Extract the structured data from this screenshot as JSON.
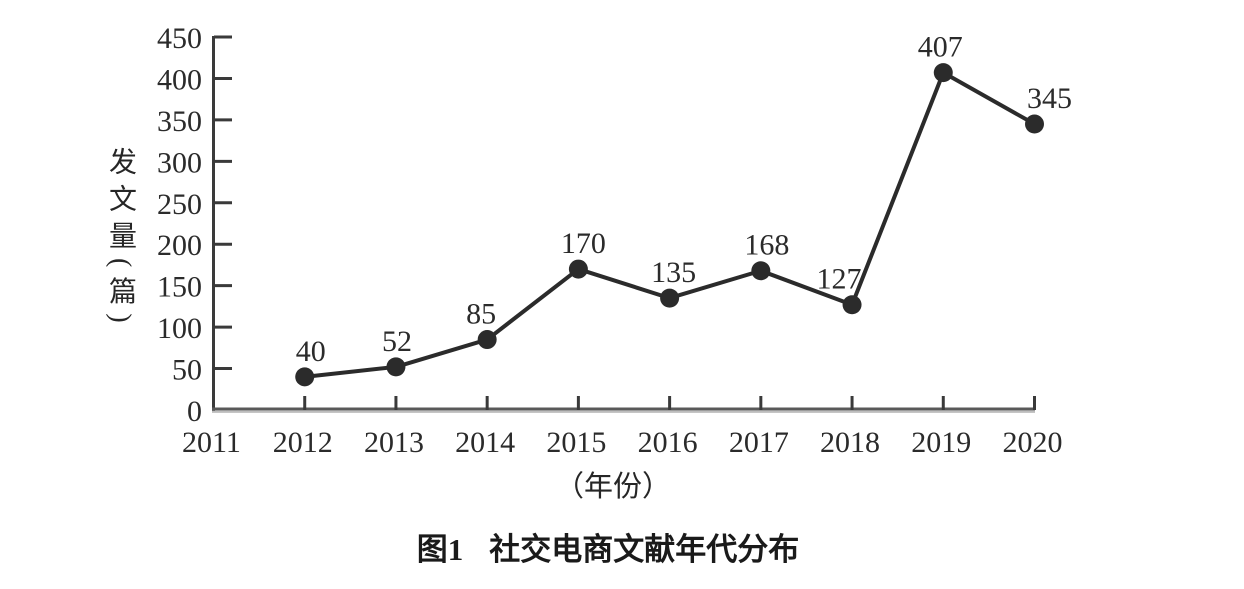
{
  "chart_data": {
    "type": "line",
    "caption": {
      "prefix": "图1",
      "title": "社交电商文献年代分布"
    },
    "ylabel": "发文量(篇)",
    "xlabel": "（年份）",
    "x_ticks": [
      "2011",
      "2012",
      "2013",
      "2014",
      "2015",
      "2016",
      "2017",
      "2018",
      "2019",
      "2020"
    ],
    "y_ticks": [
      0,
      50,
      100,
      150,
      200,
      250,
      300,
      350,
      400,
      450
    ],
    "ylim": [
      0,
      450
    ],
    "grid": false,
    "legend": null,
    "line_color": "#2b2b2b",
    "axis_color": "#3a3a3a",
    "marker": "filled-circle",
    "series": [
      {
        "x": [
          "2012",
          "2013",
          "2014",
          "2015",
          "2016",
          "2017",
          "2018",
          "2019",
          "2020"
        ],
        "values": [
          40,
          52,
          85,
          170,
          135,
          168,
          127,
          407,
          345
        ],
        "labels": [
          "40",
          "52",
          "85",
          "170",
          "135",
          "168",
          "127",
          "407",
          "345"
        ]
      }
    ]
  }
}
